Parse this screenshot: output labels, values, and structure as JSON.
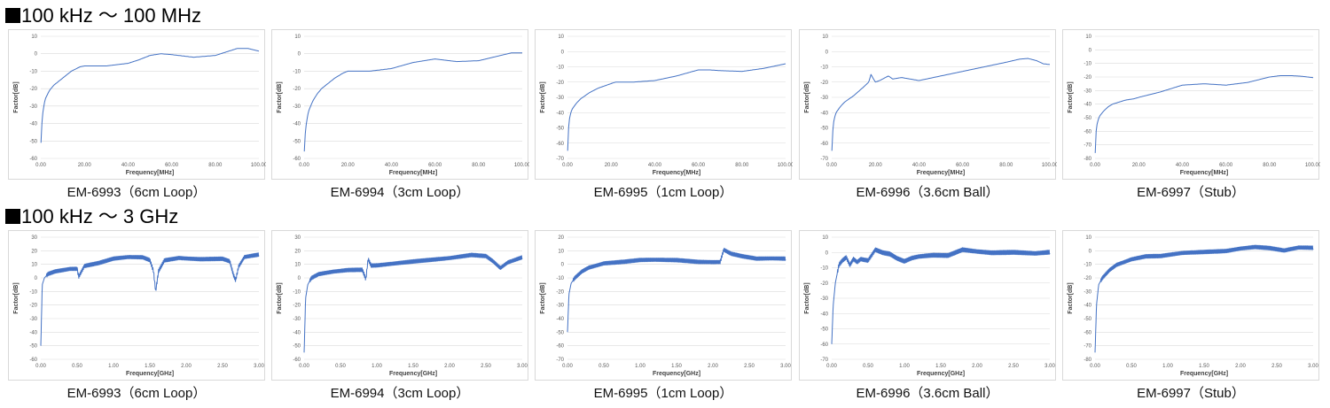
{
  "sections": [
    {
      "title": "100 kHz ～ 100 MHz"
    },
    {
      "title": "100 kHz ～ 3 GHz"
    }
  ],
  "chart_data": [
    {
      "type": "line",
      "caption": "EM-6993（6cm Loop）",
      "xlabel": "Frequency[MHz]",
      "ylabel": "Factor[dB]",
      "xlim": [
        0,
        100
      ],
      "ylim": [
        -60,
        10
      ],
      "xticks": [
        "0.00",
        "20.00",
        "40.00",
        "60.00",
        "80.00",
        "100.00"
      ],
      "yticks": [
        "10",
        "0",
        "-10",
        "-20",
        "-30",
        "-40",
        "-50",
        "-60"
      ],
      "grid": true,
      "color": "#4472c4",
      "x": [
        0.1,
        0.5,
        1,
        2,
        4,
        6,
        8,
        10,
        14,
        18,
        20,
        30,
        40,
        45,
        50,
        55,
        60,
        70,
        80,
        85,
        90,
        95,
        100
      ],
      "y": [
        -51,
        -40,
        -33,
        -26,
        -21,
        -18,
        -16,
        -14,
        -10,
        -7.5,
        -7,
        -7,
        -5.5,
        -3.5,
        -1,
        0,
        -0.5,
        -2,
        -1,
        1,
        3,
        3,
        1.5
      ]
    },
    {
      "type": "line",
      "caption": "EM-6994（3cm Loop）",
      "xlabel": "Frequency[MHz]",
      "ylabel": "Factor[dB]",
      "xlim": [
        0,
        100
      ],
      "ylim": [
        -60,
        10
      ],
      "xticks": [
        "0.00",
        "20.00",
        "40.00",
        "60.00",
        "80.00",
        "100.00"
      ],
      "yticks": [
        "10",
        "0",
        "-10",
        "-20",
        "-30",
        "-40",
        "-50",
        "-60"
      ],
      "grid": true,
      "color": "#4472c4",
      "x": [
        0.1,
        0.5,
        1,
        2,
        4,
        6,
        8,
        10,
        14,
        18,
        20,
        30,
        40,
        50,
        60,
        70,
        80,
        90,
        95,
        100
      ],
      "y": [
        -56,
        -46,
        -40,
        -33,
        -27,
        -23,
        -20,
        -18,
        -14,
        -11,
        -10,
        -10,
        -8.5,
        -5,
        -3,
        -4.5,
        -4,
        -1,
        0.5,
        0.5
      ]
    },
    {
      "type": "line",
      "caption": "EM-6995（1cm Loop）",
      "xlabel": "Frequency[MHz]",
      "ylabel": "Factor[dB]",
      "xlim": [
        0,
        100
      ],
      "ylim": [
        -70,
        10
      ],
      "xticks": [
        "0.00",
        "20.00",
        "40.00",
        "60.00",
        "80.00",
        "100.00"
      ],
      "yticks": [
        "10",
        "0",
        "-10",
        "-20",
        "-30",
        "-40",
        "-50",
        "-60",
        "-70"
      ],
      "grid": true,
      "color": "#4472c4",
      "x": [
        0.1,
        0.5,
        1,
        2,
        4,
        6,
        8,
        10,
        14,
        18,
        22,
        30,
        40,
        50,
        60,
        65,
        70,
        80,
        90,
        100
      ],
      "y": [
        -65,
        -50,
        -43,
        -38,
        -34,
        -31,
        -29,
        -27,
        -24,
        -22,
        -20,
        -20,
        -19,
        -16,
        -12,
        -12,
        -12.5,
        -13,
        -11,
        -8
      ]
    },
    {
      "type": "line",
      "caption": "EM-6996（3.6cm Ball）",
      "xlabel": "Frequency[MHz]",
      "ylabel": "Factor[dB]",
      "xlim": [
        0,
        100
      ],
      "ylim": [
        -70,
        10
      ],
      "xticks": [
        "0.00",
        "20.00",
        "40.00",
        "60.00",
        "80.00",
        "100.00"
      ],
      "yticks": [
        "10",
        "0",
        "-10",
        "-20",
        "-30",
        "-40",
        "-50",
        "-60",
        "-70"
      ],
      "grid": true,
      "color": "#4472c4",
      "x": [
        0.1,
        0.5,
        1,
        2,
        4,
        6,
        8,
        10,
        14,
        17,
        18,
        20,
        22,
        26,
        28,
        32,
        36,
        40,
        50,
        60,
        70,
        80,
        86,
        90,
        94,
        97,
        100
      ],
      "y": [
        -65,
        -52,
        -45,
        -40,
        -36,
        -33,
        -31,
        -29,
        -24,
        -20,
        -15,
        -20,
        -19,
        -16,
        -18,
        -17,
        -18,
        -19,
        -16,
        -13,
        -10,
        -7,
        -5,
        -4.5,
        -6,
        -8,
        -8.5
      ]
    },
    {
      "type": "line",
      "caption": "EM-6997（Stub）",
      "xlabel": "Frequency[MHz]",
      "ylabel": "Factor[dB]",
      "xlim": [
        0,
        100
      ],
      "ylim": [
        -80,
        10
      ],
      "xticks": [
        "0.00",
        "20.00",
        "40.00",
        "60.00",
        "80.00",
        "100.00"
      ],
      "yticks": [
        "10",
        "0",
        "-10",
        "-20",
        "-30",
        "-40",
        "-50",
        "-60",
        "-70",
        "-80"
      ],
      "grid": true,
      "color": "#4472c4",
      "x": [
        0.1,
        0.5,
        1,
        2,
        4,
        6,
        8,
        10,
        14,
        18,
        20,
        30,
        40,
        50,
        60,
        70,
        80,
        85,
        90,
        95,
        100
      ],
      "y": [
        -76,
        -60,
        -54,
        -49,
        -45,
        -42,
        -40,
        -39,
        -37,
        -36,
        -35,
        -31,
        -26,
        -25,
        -26,
        -24,
        -20,
        -19,
        -19,
        -19.5,
        -20.5
      ]
    },
    {
      "type": "line",
      "caption": "EM-6993（6cm Loop）",
      "xlabel": "Frequency[GHz]",
      "ylabel": "Factor[dB]",
      "xlim": [
        0,
        3
      ],
      "ylim": [
        -60,
        30
      ],
      "xticks": [
        "0.00",
        "0.50",
        "1.00",
        "1.50",
        "2.00",
        "2.50",
        "3.00"
      ],
      "yticks": [
        "30",
        "20",
        "10",
        "0",
        "-10",
        "-20",
        "-30",
        "-40",
        "-50",
        "-60"
      ],
      "grid": true,
      "color": "#4472c4",
      "x": [
        0,
        0.02,
        0.05,
        0.1,
        0.2,
        0.3,
        0.4,
        0.5,
        0.52,
        0.6,
        0.8,
        1.0,
        1.2,
        1.4,
        1.5,
        1.55,
        1.58,
        1.62,
        1.7,
        1.9,
        2.2,
        2.5,
        2.6,
        2.65,
        2.68,
        2.72,
        2.8,
        3.0
      ],
      "y": [
        -50,
        -5,
        0,
        3,
        5,
        6,
        7,
        7,
        1,
        9,
        11,
        14,
        15,
        15,
        13,
        5,
        -10,
        5,
        13,
        15,
        14,
        14,
        12,
        2,
        -2,
        8,
        15,
        17
      ],
      "ripple": true
    },
    {
      "type": "line",
      "caption": "EM-6994（3cm Loop）",
      "xlabel": "Frequency[GHz]",
      "ylabel": "Factor[dB]",
      "xlim": [
        0,
        3
      ],
      "ylim": [
        -60,
        30
      ],
      "xticks": [
        "0.00",
        "0.50",
        "1.00",
        "1.50",
        "2.00",
        "2.50",
        "3.00"
      ],
      "yticks": [
        "30",
        "20",
        "10",
        "0",
        "-10",
        "-20",
        "-30",
        "-40",
        "-50",
        "-60"
      ],
      "grid": true,
      "color": "#4472c4",
      "x": [
        0,
        0.02,
        0.05,
        0.1,
        0.2,
        0.4,
        0.6,
        0.8,
        0.85,
        0.88,
        0.92,
        1.0,
        1.2,
        1.5,
        2.0,
        2.3,
        2.5,
        2.6,
        2.7,
        2.8,
        2.9,
        3.0
      ],
      "y": [
        -55,
        -15,
        -5,
        0,
        3,
        5,
        6,
        6,
        -1,
        14,
        9,
        9,
        10,
        12,
        15,
        17,
        16,
        12,
        7,
        11,
        13,
        15
      ],
      "ripple": true
    },
    {
      "type": "line",
      "caption": "EM-6995（1cm Loop）",
      "xlabel": "Frequency[GHz]",
      "ylabel": "Factor[dB]",
      "xlim": [
        0,
        3
      ],
      "ylim": [
        -70,
        20
      ],
      "xticks": [
        "0.00",
        "0.50",
        "1.00",
        "1.50",
        "2.00",
        "2.50",
        "3.00"
      ],
      "yticks": [
        "20",
        "10",
        "0",
        "-10",
        "-20",
        "-30",
        "-40",
        "-50",
        "-60",
        "-70"
      ],
      "grid": true,
      "color": "#4472c4",
      "x": [
        0,
        0.02,
        0.05,
        0.1,
        0.2,
        0.3,
        0.5,
        0.8,
        1.0,
        1.5,
        1.8,
        2.0,
        2.1,
        2.15,
        2.25,
        2.4,
        2.6,
        3.0
      ],
      "y": [
        -50,
        -22,
        -14,
        -10,
        -5,
        -2,
        1,
        2,
        3,
        3,
        2,
        2,
        2,
        11,
        8,
        6,
        4,
        4
      ],
      "ripple": true
    },
    {
      "type": "line",
      "caption": "EM-6996（3.6cm Ball）",
      "xlabel": "Frequency[GHz]",
      "ylabel": "Factor[dB]",
      "xlim": [
        0,
        3
      ],
      "ylim": [
        -70,
        10
      ],
      "xticks": [
        "0.00",
        "0.50",
        "1.00",
        "1.50",
        "2.00",
        "2.50",
        "3.00"
      ],
      "yticks": [
        "10",
        "0",
        "-10",
        "-20",
        "-30",
        "-40",
        "-50",
        "-60",
        "-70"
      ],
      "grid": true,
      "color": "#4472c4",
      "x": [
        0,
        0.02,
        0.05,
        0.1,
        0.15,
        0.2,
        0.25,
        0.3,
        0.35,
        0.4,
        0.5,
        0.6,
        0.7,
        0.8,
        0.9,
        1.0,
        1.1,
        1.2,
        1.4,
        1.6,
        1.7,
        1.8,
        2.0,
        2.2,
        2.5,
        2.8,
        3.0
      ],
      "y": [
        -60,
        -35,
        -20,
        -8,
        -5,
        -3,
        -8,
        -4,
        -6,
        -4,
        -5,
        2,
        0,
        -1,
        -4,
        -6,
        -4,
        -3,
        -2,
        -2,
        0,
        2,
        1,
        0,
        0,
        -1,
        0
      ],
      "ripple": true
    },
    {
      "type": "line",
      "caption": "EM-6997（Stub）",
      "xlabel": "Frequency[GHz]",
      "ylabel": "Factor[dB]",
      "xlim": [
        0,
        3
      ],
      "ylim": [
        -80,
        10
      ],
      "xticks": [
        "0.00",
        "0.50",
        "1.00",
        "1.50",
        "2.00",
        "2.50",
        "3.00"
      ],
      "yticks": [
        "10",
        "0",
        "-10",
        "-20",
        "-30",
        "-40",
        "-50",
        "-60",
        "-70",
        "-80"
      ],
      "grid": true,
      "color": "#4472c4",
      "x": [
        0,
        0.02,
        0.05,
        0.1,
        0.2,
        0.3,
        0.5,
        0.7,
        0.9,
        1.2,
        1.5,
        1.8,
        2.0,
        2.2,
        2.4,
        2.6,
        2.8,
        3.0
      ],
      "y": [
        -75,
        -40,
        -25,
        -20,
        -14,
        -10,
        -6,
        -4,
        -4,
        -2,
        -1,
        0,
        2,
        3,
        2,
        0,
        2,
        2
      ],
      "ripple": true
    }
  ]
}
